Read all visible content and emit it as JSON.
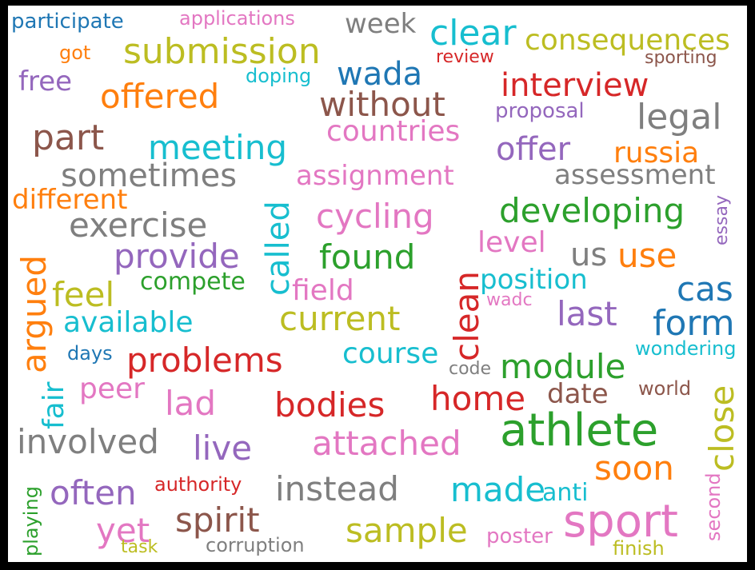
{
  "words": [
    {
      "text": "participate",
      "color": "#1f77b4"
    },
    {
      "text": "applications",
      "color": "#e377c2"
    },
    {
      "text": "week",
      "color": "#7f7f7f"
    },
    {
      "text": "clear",
      "color": "#17becf"
    },
    {
      "text": "consequences",
      "color": "#bcbd22"
    },
    {
      "text": "got",
      "color": "#ff7f0e"
    },
    {
      "text": "submission",
      "color": "#bcbd22"
    },
    {
      "text": "review",
      "color": "#d62728"
    },
    {
      "text": "sporting",
      "color": "#8c564b"
    },
    {
      "text": "free",
      "color": "#9467bd"
    },
    {
      "text": "doping",
      "color": "#17becf"
    },
    {
      "text": "wada",
      "color": "#1f77b4"
    },
    {
      "text": "interview",
      "color": "#d62728"
    },
    {
      "text": "offered",
      "color": "#ff7f0e"
    },
    {
      "text": "without",
      "color": "#8c564b"
    },
    {
      "text": "proposal",
      "color": "#9467bd"
    },
    {
      "text": "legal",
      "color": "#7f7f7f"
    },
    {
      "text": "part",
      "color": "#8c564b"
    },
    {
      "text": "countries",
      "color": "#e377c2"
    },
    {
      "text": "meeting",
      "color": "#17becf"
    },
    {
      "text": "offer",
      "color": "#9467bd"
    },
    {
      "text": "russia",
      "color": "#ff7f0e"
    },
    {
      "text": "sometimes",
      "color": "#7f7f7f"
    },
    {
      "text": "assignment",
      "color": "#e377c2"
    },
    {
      "text": "assessment",
      "color": "#7f7f7f"
    },
    {
      "text": "called",
      "color": "#17becf"
    },
    {
      "text": "different",
      "color": "#ff7f0e"
    },
    {
      "text": "essay",
      "color": "#9467bd"
    },
    {
      "text": "developing",
      "color": "#2ca02c"
    },
    {
      "text": "exercise",
      "color": "#7f7f7f"
    },
    {
      "text": "cycling",
      "color": "#e377c2"
    },
    {
      "text": "level",
      "color": "#e377c2"
    },
    {
      "text": "provide",
      "color": "#9467bd"
    },
    {
      "text": "found",
      "color": "#2ca02c"
    },
    {
      "text": "us",
      "color": "#7f7f7f"
    },
    {
      "text": "use",
      "color": "#ff7f0e"
    },
    {
      "text": "argued",
      "color": "#ff7f0e"
    },
    {
      "text": "clean",
      "color": "#d62728"
    },
    {
      "text": "compete",
      "color": "#2ca02c"
    },
    {
      "text": "position",
      "color": "#17becf"
    },
    {
      "text": "feel",
      "color": "#bcbd22"
    },
    {
      "text": "field",
      "color": "#e377c2"
    },
    {
      "text": "cas",
      "color": "#1f77b4"
    },
    {
      "text": "wadc",
      "color": "#e377c2"
    },
    {
      "text": "current",
      "color": "#bcbd22"
    },
    {
      "text": "last",
      "color": "#9467bd"
    },
    {
      "text": "available",
      "color": "#17becf"
    },
    {
      "text": "form",
      "color": "#1f77b4"
    },
    {
      "text": "days",
      "color": "#1f77b4"
    },
    {
      "text": "course",
      "color": "#17becf"
    },
    {
      "text": "wondering",
      "color": "#17becf"
    },
    {
      "text": "fair",
      "color": "#17becf"
    },
    {
      "text": "problems",
      "color": "#d62728"
    },
    {
      "text": "code",
      "color": "#7f7f7f"
    },
    {
      "text": "module",
      "color": "#2ca02c"
    },
    {
      "text": "peer",
      "color": "#e377c2"
    },
    {
      "text": "world",
      "color": "#8c564b"
    },
    {
      "text": "lad",
      "color": "#e377c2"
    },
    {
      "text": "bodies",
      "color": "#d62728"
    },
    {
      "text": "home",
      "color": "#d62728"
    },
    {
      "text": "date",
      "color": "#8c564b"
    },
    {
      "text": "close",
      "color": "#bcbd22"
    },
    {
      "text": "involved",
      "color": "#7f7f7f"
    },
    {
      "text": "athlete",
      "color": "#2ca02c"
    },
    {
      "text": "live",
      "color": "#9467bd"
    },
    {
      "text": "attached",
      "color": "#e377c2"
    },
    {
      "text": "soon",
      "color": "#ff7f0e"
    },
    {
      "text": "playing",
      "color": "#2ca02c"
    },
    {
      "text": "authority",
      "color": "#d62728"
    },
    {
      "text": "instead",
      "color": "#7f7f7f"
    },
    {
      "text": "second",
      "color": "#e377c2"
    },
    {
      "text": "often",
      "color": "#9467bd"
    },
    {
      "text": "made",
      "color": "#17becf"
    },
    {
      "text": "anti",
      "color": "#17becf"
    },
    {
      "text": "spirit",
      "color": "#8c564b"
    },
    {
      "text": "sport",
      "color": "#e377c2"
    },
    {
      "text": "yet",
      "color": "#e377c2"
    },
    {
      "text": "sample",
      "color": "#bcbd22"
    },
    {
      "text": "poster",
      "color": "#e377c2"
    },
    {
      "text": "task",
      "color": "#bcbd22"
    },
    {
      "text": "corruption",
      "color": "#7f7f7f"
    },
    {
      "text": "finish",
      "color": "#bcbd22"
    }
  ]
}
